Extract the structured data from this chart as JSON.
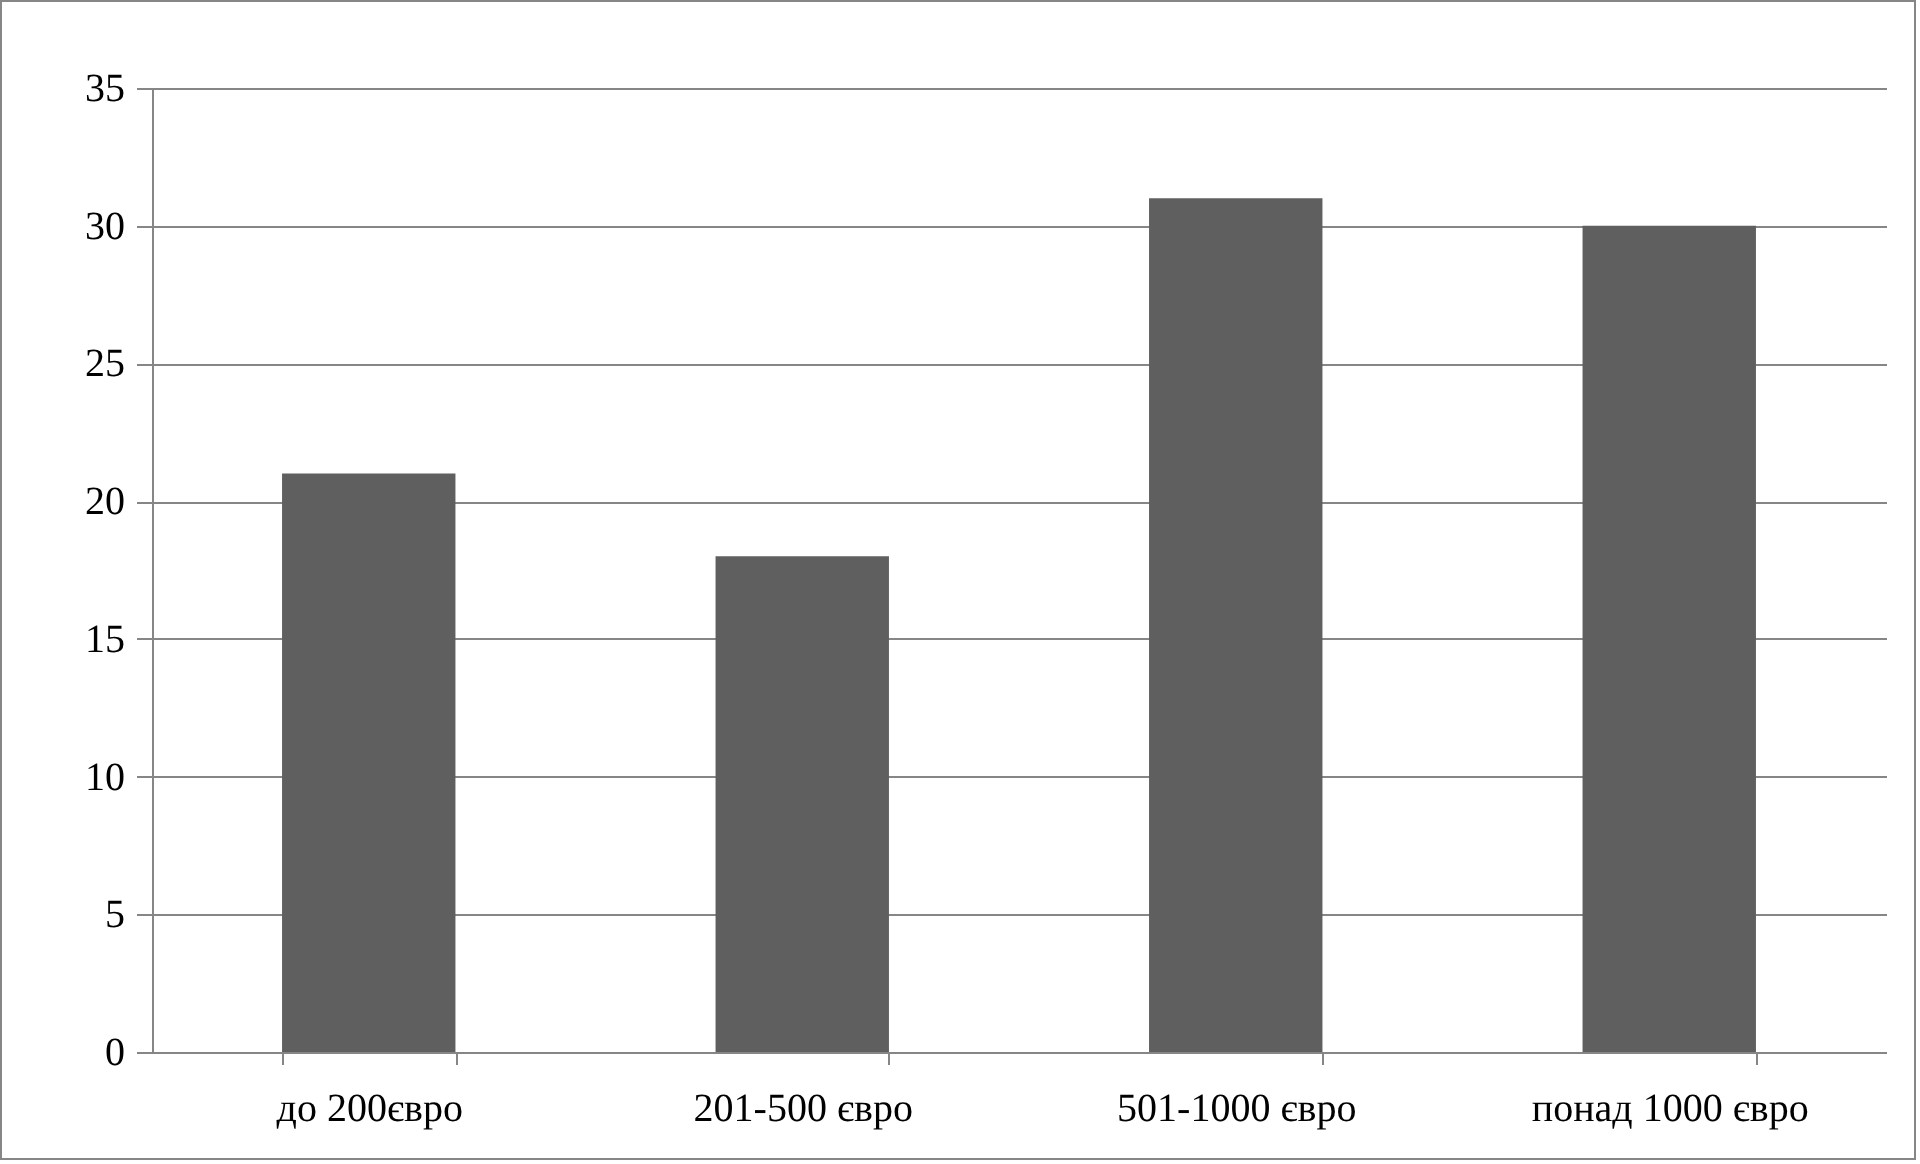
{
  "chart_data": {
    "type": "bar",
    "categories": [
      "до 200євро",
      "201-500 євро",
      "501-1000 євро",
      "понад 1000 євро"
    ],
    "values": [
      21,
      18,
      31,
      30
    ],
    "color": "#5f5f5f",
    "ylim": [
      0,
      35
    ],
    "yticks": [
      0,
      5,
      10,
      15,
      20,
      25,
      30,
      35
    ],
    "grid": "y"
  }
}
